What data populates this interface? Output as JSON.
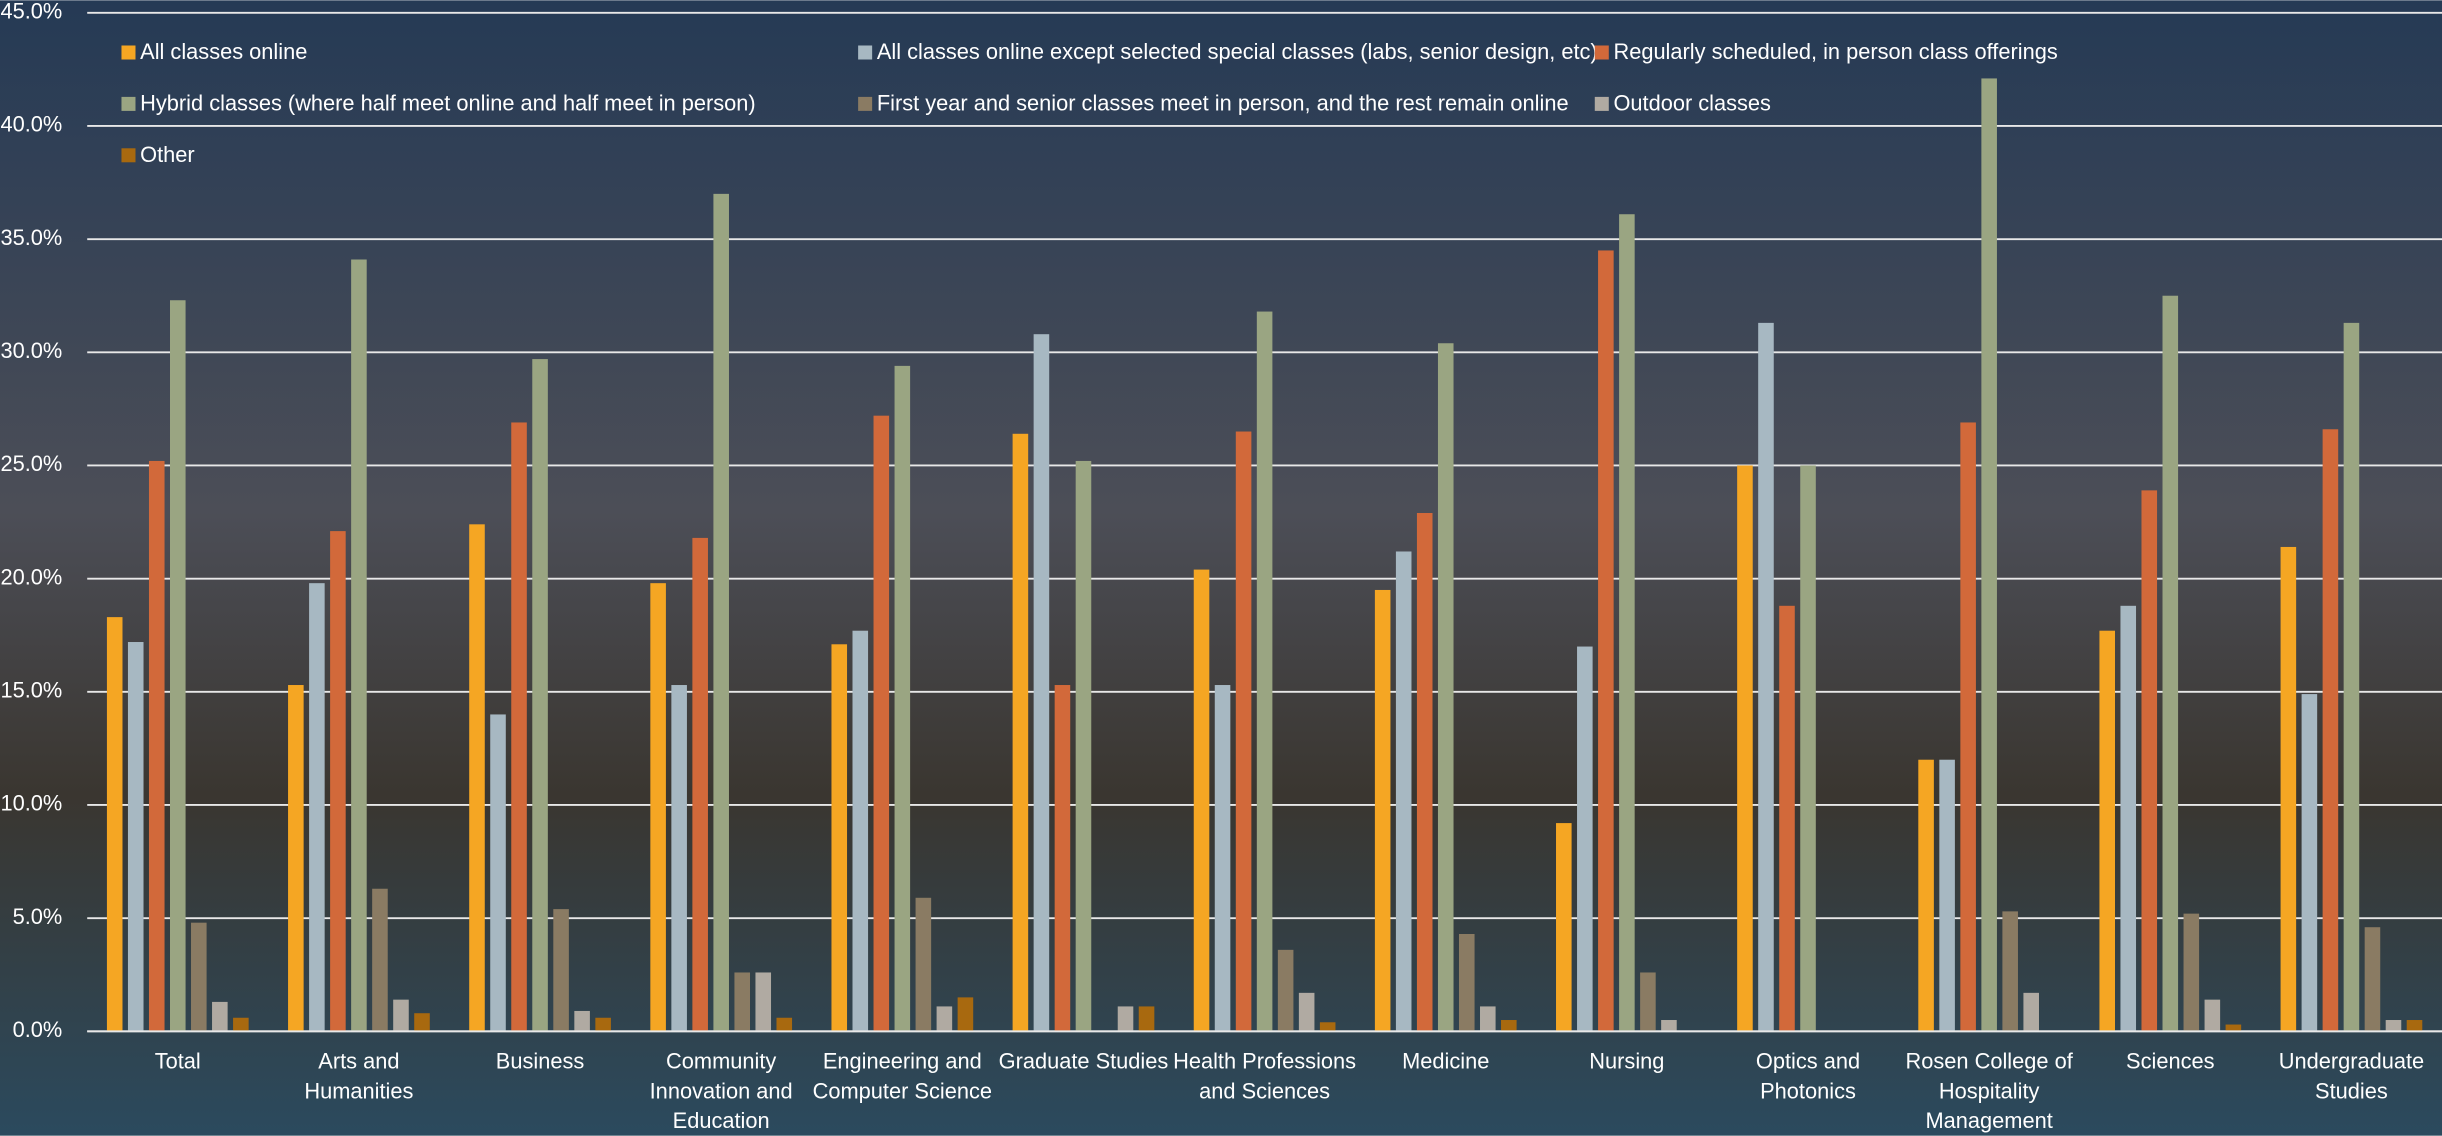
{
  "chart_data": {
    "type": "bar",
    "categories": [
      "Total",
      "Arts and Humanities",
      "Business",
      "Community Innovation and Education",
      "Engineering and Computer Science",
      "Graduate Studies",
      "Health Professions and Sciences",
      "Medicine",
      "Nursing",
      "Optics and Photonics",
      "Rosen College of Hospitality Management",
      "Sciences",
      "Undergraduate Studies"
    ],
    "series": [
      {
        "name": "All classes online",
        "color": "#f5a623",
        "values": [
          18.3,
          15.3,
          22.4,
          19.8,
          17.1,
          26.4,
          20.4,
          19.5,
          9.2,
          25.0,
          12.0,
          17.7,
          21.4
        ]
      },
      {
        "name": "All classes online except selected special classes (labs, senior design, etc)",
        "color": "#a7b8c2",
        "values": [
          17.2,
          19.8,
          14.0,
          15.3,
          17.7,
          30.8,
          15.3,
          21.2,
          17.0,
          31.3,
          12.0,
          18.8,
          14.9
        ]
      },
      {
        "name": "Regularly scheduled, in person class offerings",
        "color": "#d2693a",
        "values": [
          25.2,
          22.1,
          26.9,
          21.8,
          27.2,
          15.3,
          26.5,
          22.9,
          34.5,
          18.8,
          26.9,
          23.9,
          26.6
        ]
      },
      {
        "name": "Hybrid classes (where half meet online and half meet in person)",
        "color": "#9aa582",
        "values": [
          32.3,
          34.1,
          29.7,
          37.0,
          29.4,
          25.2,
          31.8,
          30.4,
          36.1,
          25.0,
          42.1,
          32.5,
          31.3
        ]
      },
      {
        "name": "First year and senior classes meet in person, and the rest remain online",
        "color": "#8a7b63",
        "values": [
          4.8,
          6.3,
          5.4,
          2.6,
          5.9,
          0,
          3.6,
          4.3,
          2.6,
          0,
          5.3,
          5.2,
          4.6
        ]
      },
      {
        "name": "Outdoor classes",
        "color": "#b0aaa2",
        "values": [
          1.3,
          1.4,
          0.9,
          2.6,
          1.1,
          1.1,
          1.7,
          1.1,
          0.5,
          0,
          1.7,
          1.4,
          0.5
        ]
      },
      {
        "name": "Other",
        "color": "#a8690f",
        "values": [
          0.6,
          0.8,
          0.6,
          0.6,
          1.5,
          1.1,
          0.4,
          0.5,
          0,
          0,
          0,
          0.3,
          0.5
        ]
      }
    ],
    "ylim": [
      0,
      45
    ],
    "yticks": [
      {
        "value": 0,
        "label": "0.0%"
      },
      {
        "value": 5,
        "label": "5.0%"
      },
      {
        "value": 10,
        "label": "10.0%"
      },
      {
        "value": 15,
        "label": "15.0%"
      },
      {
        "value": 20,
        "label": "20.0%"
      },
      {
        "value": 25,
        "label": "25.0%"
      },
      {
        "value": 30,
        "label": "30.0%"
      },
      {
        "value": 35,
        "label": "35.0%"
      },
      {
        "value": 40,
        "label": "40.0%"
      },
      {
        "value": 45,
        "label": "45.0%"
      }
    ],
    "grid": true
  }
}
